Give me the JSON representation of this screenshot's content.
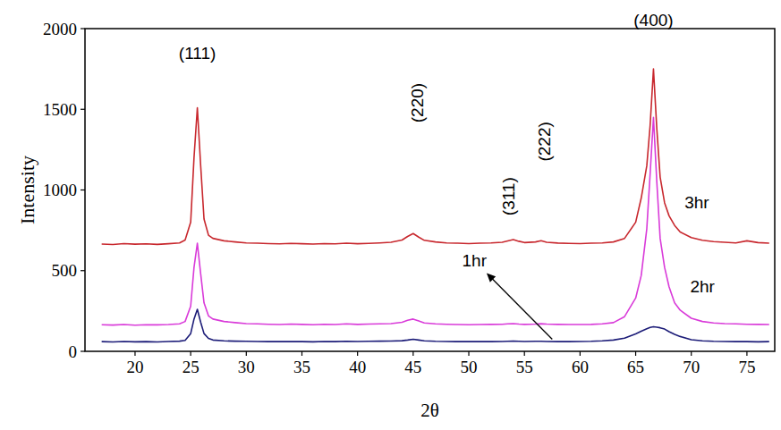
{
  "chart_data": {
    "type": "line",
    "x_label": "2θ",
    "y_label": "Intensity",
    "x": [
      17,
      18,
      19,
      20,
      21,
      22,
      23,
      24,
      24.5,
      25,
      25.3,
      25.6,
      25.9,
      26.2,
      26.6,
      27,
      28,
      29,
      30,
      31,
      32,
      33,
      34,
      35,
      36,
      37,
      38,
      39,
      40,
      41,
      42,
      43,
      44,
      44.5,
      45,
      45.5,
      46,
      47,
      48,
      49,
      50,
      51,
      52,
      53,
      53.5,
      54,
      54.5,
      55,
      56,
      56.5,
      57,
      58,
      59,
      60,
      61,
      62,
      63,
      64,
      65,
      65.5,
      66,
      66.3,
      66.6,
      66.9,
      67.2,
      67.6,
      68,
      68.5,
      69,
      70,
      71,
      72,
      73,
      74,
      75,
      76,
      77
    ],
    "series": [
      {
        "name": "1hr",
        "color": "#1c1c78",
        "values": [
          60,
          58,
          61,
          59,
          60,
          58,
          61,
          63,
          68,
          110,
          200,
          260,
          180,
          110,
          80,
          70,
          65,
          63,
          62,
          61,
          60,
          60,
          61,
          60,
          59,
          61,
          60,
          62,
          61,
          62,
          63,
          64,
          66,
          70,
          75,
          70,
          65,
          62,
          61,
          60,
          60,
          61,
          60,
          61,
          62,
          63,
          62,
          61,
          62,
          62,
          61,
          60,
          60,
          61,
          62,
          65,
          70,
          82,
          108,
          125,
          140,
          148,
          152,
          150,
          146,
          138,
          122,
          105,
          92,
          72,
          65,
          62,
          61,
          60,
          60,
          59,
          60
        ]
      },
      {
        "name": "2hr",
        "color": "#d93bd9",
        "values": [
          165,
          163,
          166,
          162,
          165,
          164,
          166,
          170,
          185,
          280,
          520,
          670,
          480,
          300,
          220,
          200,
          185,
          178,
          172,
          170,
          168,
          166,
          169,
          167,
          165,
          168,
          166,
          170,
          167,
          169,
          170,
          172,
          180,
          192,
          200,
          188,
          176,
          170,
          168,
          166,
          165,
          166,
          167,
          168,
          170,
          172,
          169,
          167,
          169,
          171,
          169,
          167,
          166,
          166,
          167,
          170,
          178,
          215,
          330,
          470,
          760,
          1100,
          1450,
          1050,
          700,
          520,
          400,
          300,
          255,
          205,
          185,
          176,
          172,
          170,
          168,
          167,
          166
        ]
      },
      {
        "name": "3hr",
        "color": "#c8282e",
        "values": [
          665,
          662,
          668,
          664,
          666,
          663,
          667,
          672,
          690,
          800,
          1200,
          1510,
          1150,
          820,
          720,
          700,
          685,
          678,
          672,
          670,
          668,
          666,
          669,
          667,
          665,
          668,
          666,
          670,
          667,
          669,
          672,
          676,
          690,
          712,
          730,
          708,
          688,
          678,
          672,
          670,
          668,
          670,
          672,
          676,
          684,
          692,
          682,
          674,
          678,
          686,
          676,
          671,
          669,
          668,
          670,
          672,
          678,
          700,
          800,
          950,
          1150,
          1400,
          1750,
          1380,
          1080,
          920,
          840,
          780,
          740,
          705,
          688,
          680,
          676,
          672,
          685,
          674,
          670
        ]
      }
    ],
    "xlim": [
      15.5,
      77.5
    ],
    "xticks": [
      20,
      25,
      30,
      35,
      40,
      45,
      50,
      55,
      60,
      65,
      70,
      75
    ],
    "ylim": [
      0,
      2000
    ],
    "yticks": [
      0,
      500,
      1000,
      1500,
      2000
    ],
    "grid": false,
    "annotations": [
      {
        "text": "(111)",
        "x": 25.6,
        "y": 1850
      },
      {
        "text": "(220)",
        "x": 45.4,
        "y": 1540,
        "orientation": "vertical"
      },
      {
        "text": "(311)",
        "x": 53.6,
        "y": 960,
        "orientation": "vertical"
      },
      {
        "text": "(222)",
        "x": 56.8,
        "y": 1300,
        "orientation": "vertical"
      },
      {
        "text": "(400)",
        "x": 66.6,
        "y": 2050
      }
    ],
    "series_labels": [
      {
        "series": 0,
        "x": 50.5,
        "y": 560,
        "arrow": [
          57.5,
          75
        ]
      },
      {
        "series": 1,
        "x": 71,
        "y": 400
      },
      {
        "series": 2,
        "x": 70.5,
        "y": 920
      }
    ]
  }
}
